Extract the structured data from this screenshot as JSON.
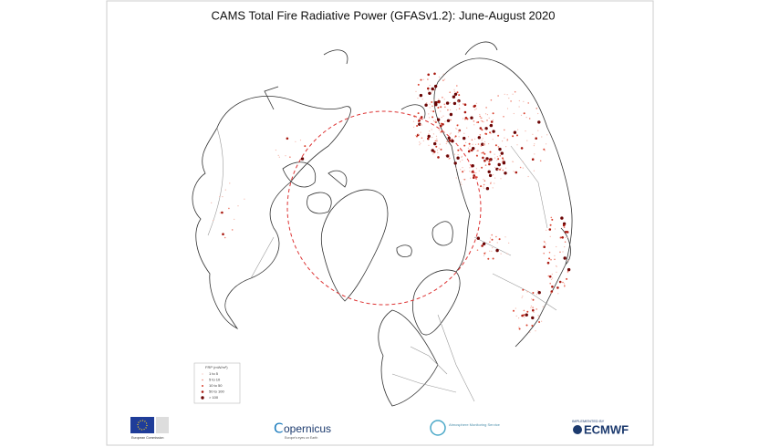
{
  "header": {
    "title": "CAMS Total Fire Radiative Power (GFASv1.2): June-August 2020"
  },
  "legend": {
    "title": "FRP (mW/m²)",
    "items": [
      {
        "label": "1 to 5"
      },
      {
        "label": "5 to 10"
      },
      {
        "label": "10 to 50"
      },
      {
        "label": "50 to 100"
      },
      {
        "label": "> 100"
      }
    ]
  },
  "footer": {
    "eu": "European Commission",
    "copernicus": "opernicus",
    "copernicus_sub": "Europe's eyes on Earth",
    "cams": "Atmosphere Monitoring Service",
    "implemented": "IMPLEMENTED BY",
    "ecmwf": "ECMWF"
  }
}
